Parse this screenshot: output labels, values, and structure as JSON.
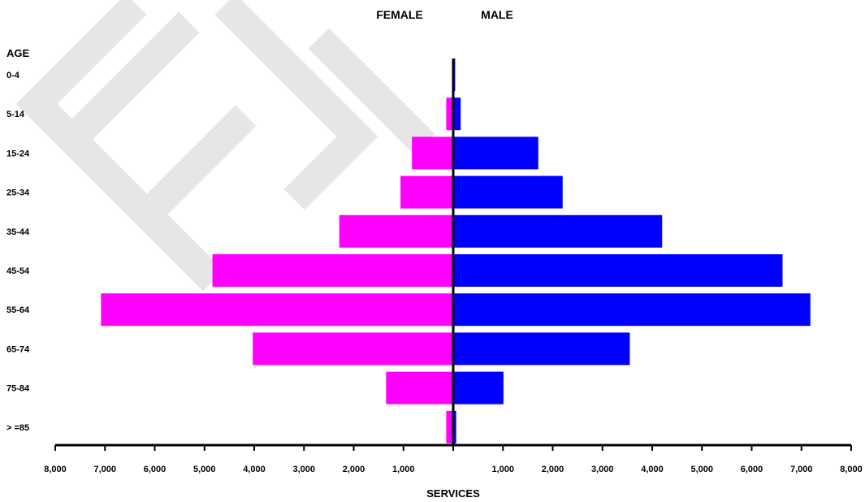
{
  "chart_data": {
    "type": "bar",
    "orientation": "horizontal-diverging",
    "legend": {
      "female": "FEMALE",
      "male": "MALE"
    },
    "y_axis_title": "AGE",
    "x_axis_title": "SERVICES",
    "categories": [
      "0-4",
      "5-14",
      "15-24",
      "25-34",
      "35-44",
      "45-54",
      "55-64",
      "65-74",
      "75-84",
      "> =85"
    ],
    "series": [
      {
        "name": "FEMALE",
        "color": "#ff00ff",
        "values": [
          20,
          140,
          830,
          1060,
          2290,
          4840,
          7080,
          4030,
          1350,
          140
        ]
      },
      {
        "name": "MALE",
        "color": "#0000ff",
        "values": [
          40,
          150,
          1710,
          2200,
          4200,
          6620,
          7180,
          3550,
          1010,
          60
        ]
      }
    ],
    "x_ticks": [
      "8,000",
      "7,000",
      "6,000",
      "5,000",
      "4,000",
      "3,000",
      "2,000",
      "1,000",
      "",
      "1,000",
      "2,000",
      "3,000",
      "4,000",
      "5,000",
      "6,000",
      "7,000",
      "8,000"
    ],
    "xlim": [
      -8000,
      8000
    ],
    "watermark": "FLI"
  }
}
